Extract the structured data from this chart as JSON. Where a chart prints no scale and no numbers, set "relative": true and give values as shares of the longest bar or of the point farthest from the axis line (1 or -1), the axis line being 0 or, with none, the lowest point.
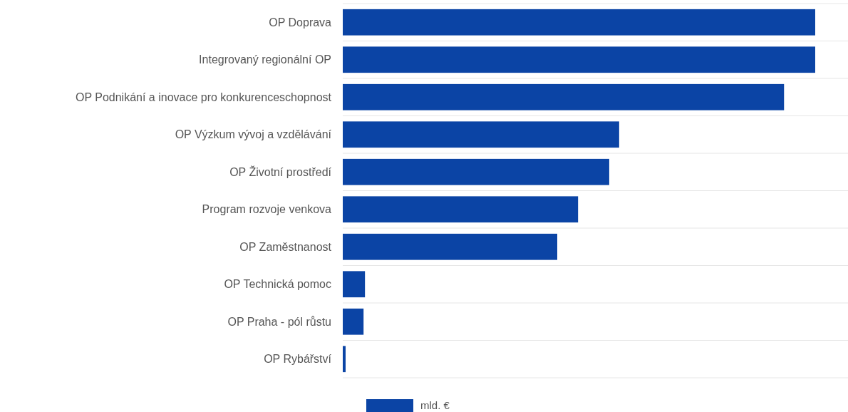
{
  "chart_data": {
    "type": "bar",
    "orientation": "horizontal",
    "relative": true,
    "categories": [
      "OP Doprava",
      "Integrovaný regionální OP ",
      "OP Podnikání a inovace pro konkurenceschopnost",
      "OP Výzkum vývoj a vzdělávání ",
      "OP Životní prostředí ",
      "Program rozvoje venkova",
      "OP Zaměstnanost",
      "OP Technická pomoc",
      "OP Praha - pól růstu",
      "OP Rybářství"
    ],
    "series": [
      {
        "name": "mld. €",
        "color": "#0b44a5",
        "values": [
          1,
          1,
          0.934,
          0.585,
          0.564,
          0.498,
          0.454,
          0.047,
          0.044,
          0.006
        ]
      }
    ],
    "grid": "y",
    "legend": "bottom"
  }
}
